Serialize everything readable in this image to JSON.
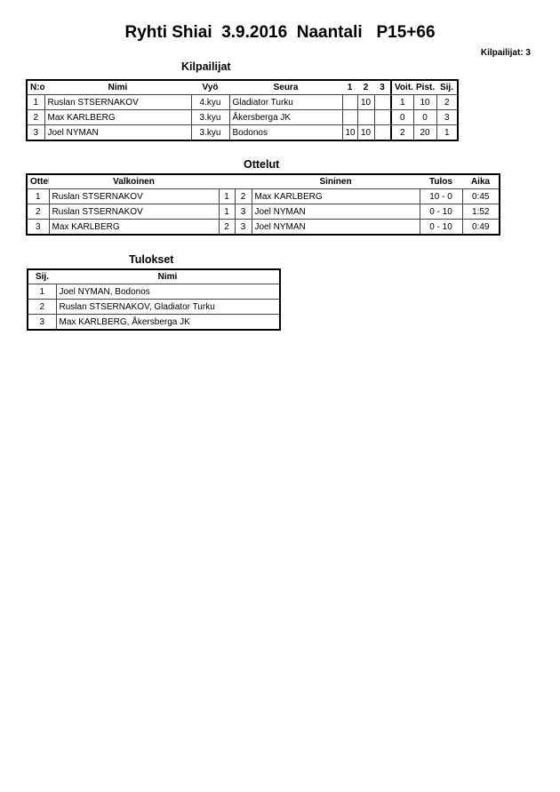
{
  "title": "Ryhti Shiai  3.9.2016  Naantali   P15+66",
  "competitor_count": "Kilpailijat: 3",
  "competitors": {
    "heading": "Kilpailijat",
    "headers": [
      "N:o",
      "Nimi",
      "Vyö",
      "Seura",
      "1",
      "2",
      "3",
      "Voit.",
      "Pist.",
      "Sij."
    ],
    "rows": [
      [
        "1",
        "Ruslan STSERNAKOV",
        "4.kyu",
        "Gladiator Turku",
        "",
        "10",
        "",
        "1",
        "10",
        "2"
      ],
      [
        "2",
        "Max KARLBERG",
        "3.kyu",
        "Åkersberga JK",
        "",
        "",
        "",
        "0",
        "0",
        "3"
      ],
      [
        "3",
        "Joel NYMAN",
        "3.kyu",
        "Bodonos",
        "10",
        "10",
        "",
        "2",
        "20",
        "1"
      ]
    ]
  },
  "matches": {
    "heading": "Ottelut",
    "headers": [
      "Ottelu",
      "Valkoinen",
      "",
      "",
      "Sininen",
      "Tulos",
      "Aika"
    ],
    "rows": [
      [
        "1",
        "Ruslan STSERNAKOV",
        "1",
        "2",
        "Max KARLBERG",
        "10 - 0",
        "0:45"
      ],
      [
        "2",
        "Ruslan STSERNAKOV",
        "1",
        "3",
        "Joel NYMAN",
        "0 - 10",
        "1:52"
      ],
      [
        "3",
        "Max KARLBERG",
        "2",
        "3",
        "Joel NYMAN",
        "0 - 10",
        "0:49"
      ]
    ]
  },
  "results": {
    "heading": "Tulokset",
    "headers": [
      "Sij.",
      "Nimi"
    ],
    "rows": [
      [
        "1",
        "Joel NYMAN, Bodonos"
      ],
      [
        "2",
        "Ruslan STSERNAKOV, Gladiator Turku"
      ],
      [
        "3",
        "Max KARLBERG, Åkersberga JK"
      ]
    ]
  }
}
